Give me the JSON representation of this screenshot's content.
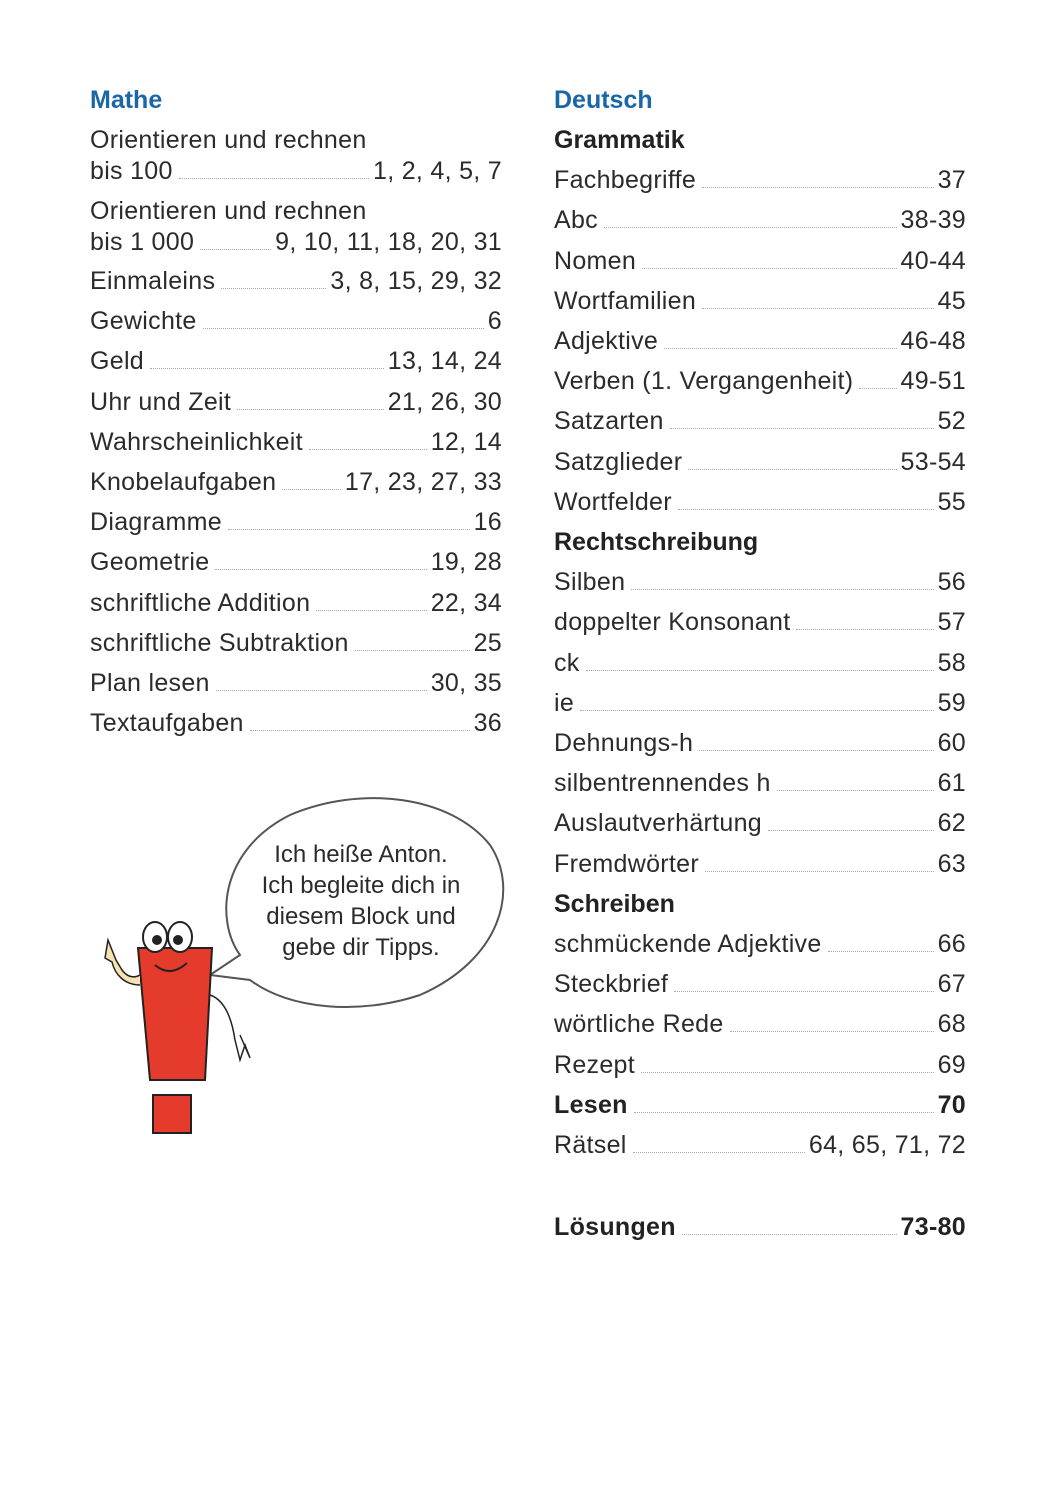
{
  "mathe": {
    "heading": "Mathe",
    "entries": [
      {
        "label_top": "Orientieren und rechnen",
        "label": "bis 100",
        "pages": "1, 2, 4, 5, 7"
      },
      {
        "label_top": "Orientieren und rechnen",
        "label": "bis 1 000",
        "pages": "9, 10, 11, 18, 20, 31"
      },
      {
        "label": "Einmaleins",
        "pages": "3, 8, 15, 29, 32"
      },
      {
        "label": "Gewichte",
        "pages": "6"
      },
      {
        "label": "Geld",
        "pages": "13, 14, 24"
      },
      {
        "label": "Uhr und Zeit",
        "pages": "21, 26, 30"
      },
      {
        "label": "Wahrscheinlichkeit",
        "pages": "12, 14"
      },
      {
        "label": "Knobelaufgaben",
        "pages": "17, 23, 27, 33"
      },
      {
        "label": "Diagramme",
        "pages": "16"
      },
      {
        "label": "Geometrie",
        "pages": "19, 28"
      },
      {
        "label": "schriftliche Addition",
        "pages": "22, 34"
      },
      {
        "label": "schriftliche Subtraktion",
        "pages": "25"
      },
      {
        "label": "Plan lesen",
        "pages": "30, 35"
      },
      {
        "label": "Textaufgaben",
        "pages": "36"
      }
    ]
  },
  "deutsch": {
    "heading": "Deutsch",
    "entries": [
      {
        "subheading": "Grammatik"
      },
      {
        "label": "Fachbegriffe",
        "pages": "37"
      },
      {
        "label": "Abc",
        "pages": "38-39"
      },
      {
        "label": "Nomen",
        "pages": "40-44"
      },
      {
        "label": "Wortfamilien",
        "pages": "45"
      },
      {
        "label": "Adjektive",
        "pages": "46-48"
      },
      {
        "label": "Verben (1. Vergangenheit)",
        "pages": "49-51"
      },
      {
        "label": "Satzarten",
        "pages": "52"
      },
      {
        "label": "Satzglieder",
        "pages": "53-54"
      },
      {
        "label": "Wortfelder",
        "pages": "55"
      },
      {
        "subheading": "Rechtschreibung"
      },
      {
        "label": "Silben",
        "pages": "56"
      },
      {
        "label": "doppelter Konsonant",
        "pages": "57"
      },
      {
        "label": "ck",
        "pages": "58"
      },
      {
        "label": "ie",
        "pages": "59"
      },
      {
        "label": "Dehnungs-h",
        "pages": "60"
      },
      {
        "label": "silbentrennendes h",
        "pages": "61"
      },
      {
        "label": "Auslautverhärtung",
        "pages": "62"
      },
      {
        "label": "Fremdwörter",
        "pages": "63"
      },
      {
        "subheading": "Schreiben"
      },
      {
        "label": "schmückende Adjektive",
        "pages": "66"
      },
      {
        "label": "Steckbrief",
        "pages": "67"
      },
      {
        "label": "wörtliche Rede",
        "pages": "68"
      },
      {
        "label": "Rezept",
        "pages": "69"
      },
      {
        "label": "Lesen",
        "pages": "70",
        "bold": true
      },
      {
        "label": "Rätsel",
        "pages": "64, 65, 71, 72"
      }
    ]
  },
  "loesungen": {
    "label": "Lösungen",
    "pages": "73-80"
  },
  "bubble": {
    "lines": [
      "Ich heiße Anton.",
      "Ich begleite dich in",
      "diesem Block und",
      "gebe dir Tipps."
    ]
  }
}
